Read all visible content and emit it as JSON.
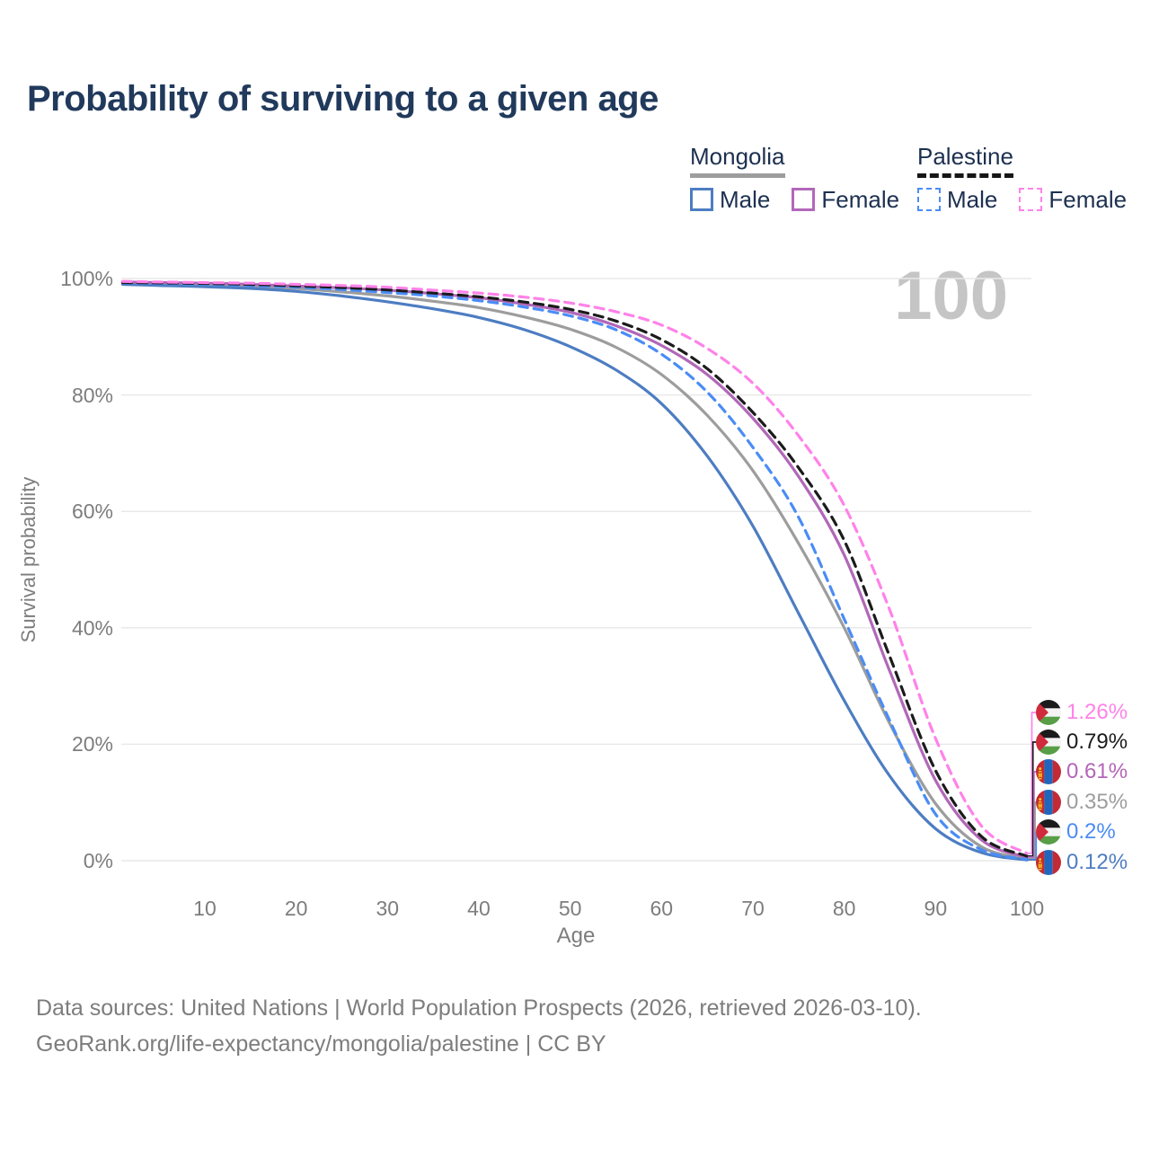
{
  "title": "Probability of surviving to a given age",
  "watermark": "100",
  "legend": {
    "groups": [
      {
        "name": "Mongolia",
        "line_style": "solid",
        "underline_color": "#9d9d9d",
        "items": [
          {
            "label": "Male",
            "color": "#4d7dc2",
            "style": "solid"
          },
          {
            "label": "Female",
            "color": "#b168b8",
            "style": "solid"
          }
        ]
      },
      {
        "name": "Palestine",
        "line_style": "dashed",
        "underline_color": "#161616",
        "items": [
          {
            "label": "Male",
            "color": "#4a8cf5",
            "style": "dashed"
          },
          {
            "label": "Female",
            "color": "#ff82e9",
            "style": "dashed"
          }
        ]
      }
    ]
  },
  "chart_data": {
    "type": "line",
    "title": "Probability of surviving to a given age",
    "xlabel": "Age",
    "ylabel": "Survival probability",
    "xlim": [
      1,
      100
    ],
    "ylim": [
      0,
      100
    ],
    "grid": "horizontal",
    "x_ticks": [
      10,
      20,
      30,
      40,
      50,
      60,
      70,
      80,
      90,
      100
    ],
    "y_ticks": [
      0,
      20,
      40,
      60,
      80,
      100
    ],
    "y_tick_labels": [
      "0%",
      "20%",
      "40%",
      "60%",
      "80%",
      "100%"
    ],
    "x": [
      1,
      5,
      10,
      15,
      20,
      25,
      30,
      35,
      40,
      45,
      50,
      55,
      60,
      65,
      70,
      75,
      80,
      85,
      90,
      95,
      100
    ],
    "series": [
      {
        "name": "Mongolia Both",
        "country": "mongolia",
        "sex": "both",
        "color": "#9d9d9d",
        "dash": false,
        "values": [
          99.2,
          99.1,
          98.9,
          98.7,
          98.3,
          97.7,
          97.0,
          96.1,
          95.0,
          93.4,
          91.3,
          88.2,
          83.5,
          76.5,
          67.0,
          54.5,
          40.0,
          23.5,
          9.8,
          2.4,
          0.35
        ]
      },
      {
        "name": "Mongolia Male",
        "country": "mongolia",
        "sex": "male",
        "color": "#4d7dc2",
        "dash": false,
        "values": [
          99.0,
          98.8,
          98.6,
          98.3,
          97.8,
          97.0,
          96.0,
          94.8,
          93.3,
          91.2,
          88.3,
          84.3,
          78.5,
          69.5,
          57.5,
          42.5,
          27.5,
          14.5,
          5.5,
          1.4,
          0.12
        ]
      },
      {
        "name": "Mongolia Female",
        "country": "mongolia",
        "sex": "female",
        "color": "#b168b8",
        "dash": false,
        "values": [
          99.4,
          99.3,
          99.2,
          99.0,
          98.7,
          98.4,
          98.0,
          97.4,
          96.7,
          95.6,
          94.2,
          91.9,
          88.5,
          83.5,
          76.0,
          66.0,
          52.5,
          32.5,
          13.8,
          3.6,
          0.61
        ]
      },
      {
        "name": "Palestine Male",
        "country": "palestine",
        "sex": "male",
        "color": "#4a8cf5",
        "dash": true,
        "values": [
          99.2,
          99.1,
          99.0,
          98.8,
          98.5,
          98.1,
          97.6,
          97.0,
          96.2,
          95.1,
          93.6,
          91.2,
          87.0,
          80.5,
          71.0,
          59.0,
          41.5,
          24.0,
          8.0,
          1.9,
          0.2
        ]
      },
      {
        "name": "Palestine Both",
        "country": "palestine",
        "sex": "both",
        "color": "#1b1b1b",
        "dash": true,
        "values": [
          99.3,
          99.25,
          99.15,
          99.0,
          98.75,
          98.45,
          98.05,
          97.5,
          96.85,
          95.95,
          94.7,
          92.7,
          89.5,
          84.5,
          77.0,
          67.5,
          55.0,
          35.0,
          15.5,
          4.2,
          0.79
        ]
      },
      {
        "name": "Palestine Female",
        "country": "palestine",
        "sex": "female",
        "color": "#ff82e9",
        "dash": true,
        "values": [
          99.5,
          99.4,
          99.3,
          99.2,
          99.0,
          98.8,
          98.5,
          98.0,
          97.5,
          96.8,
          95.8,
          94.3,
          92.0,
          88.0,
          82.0,
          73.0,
          61.0,
          43.0,
          21.0,
          6.0,
          1.26
        ]
      }
    ],
    "end_labels": [
      {
        "series": "Palestine Female",
        "value": "1.26%",
        "color": "#ff82e9",
        "flag": "palestine"
      },
      {
        "series": "Palestine Both",
        "value": "0.79%",
        "color": "#1b1b1b",
        "flag": "palestine"
      },
      {
        "series": "Mongolia Female",
        "value": "0.61%",
        "color": "#b465b8",
        "flag": "mongolia"
      },
      {
        "series": "Mongolia Both",
        "value": "0.35%",
        "color": "#9d9d9d",
        "flag": "mongolia"
      },
      {
        "series": "Palestine Male",
        "value": "0.2%",
        "color": "#4a8cf5",
        "flag": "palestine"
      },
      {
        "series": "Mongolia Male",
        "value": "0.12%",
        "color": "#4d7dc2",
        "flag": "mongolia"
      }
    ]
  },
  "axis": {
    "x_title": "Age",
    "y_title": "Survival probability"
  },
  "footer": {
    "line1": "Data sources: United Nations | World Population Prospects (2026, retrieved 2026-03-10).",
    "line2": "GeoRank.org/life-expectancy/mongolia/palestine | CC BY"
  },
  "colors": {
    "title_text": "#213a5c",
    "legend_text": "#1d3050",
    "axis_text": "#7d7d7d",
    "gridline": "#e9e9e9",
    "watermark": "#c5c5c5",
    "background": "#ffffff"
  },
  "flags": {
    "palestine": {
      "black": "#1b1b1b",
      "white": "#f4f4f4",
      "green": "#579e47",
      "red": "#d02b3c"
    },
    "mongolia": {
      "red": "#c22a35",
      "blue": "#2166bd",
      "yellow": "#f8c917"
    }
  }
}
